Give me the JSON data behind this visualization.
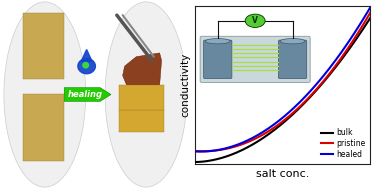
{
  "fig_width": 3.78,
  "fig_height": 1.89,
  "dpi": 100,
  "bulk_color": "#000000",
  "pristine_color": "#dd0000",
  "healed_color": "#0000dd",
  "legend_labels": [
    "bulk",
    "pristine",
    "healed"
  ],
  "xlabel": "salt conc.",
  "ylabel": "conductivity",
  "healing_arrow_color": "#22cc00",
  "healing_text": "healing",
  "healing_text_color": "#ffffff",
  "left_oval_color": "#e8e8e8",
  "right_oval_color": "#e8e8e8",
  "membrane_tan": "#c8a850",
  "membrane_gold": "#d4a830",
  "membrane_dark": "#8b4020",
  "inset_box_color": "#c8d4d8",
  "inset_electrode_color": "#7090a0",
  "voltmeter_color": "#55cc33",
  "wire_color": "#111111"
}
